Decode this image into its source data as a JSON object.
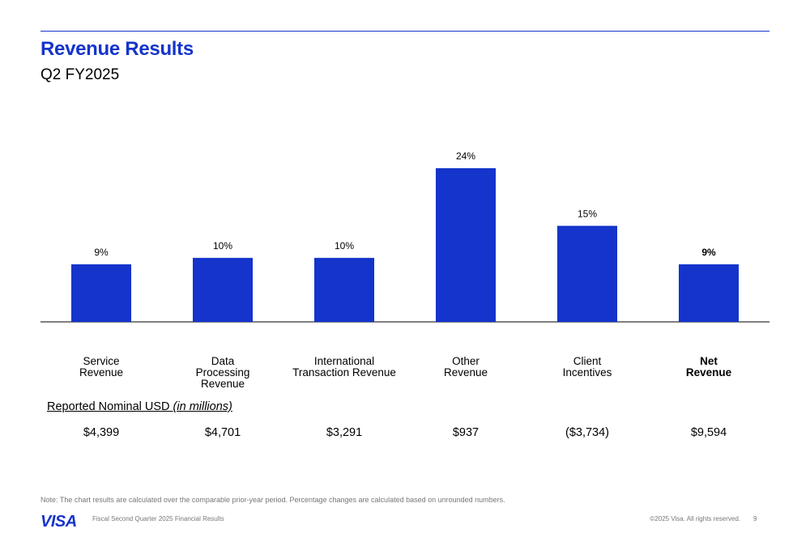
{
  "header": {
    "title": "Revenue Results",
    "subtitle": "Q2 FY2025"
  },
  "chart_data": {
    "type": "bar",
    "categories": [
      "Service\nRevenue",
      "Data\nProcessing\nRevenue",
      "International\nTransaction Revenue",
      "Other\nRevenue",
      "Client\nIncentives",
      "Net\nRevenue"
    ],
    "values": [
      9,
      10,
      10,
      24,
      15,
      9
    ],
    "value_labels": [
      "9%",
      "10%",
      "10%",
      "24%",
      "15%",
      "9%"
    ],
    "bold_last": true,
    "colors": {
      "bar": "#1434CB",
      "axis": "#000000"
    },
    "ylim": [
      0,
      24
    ],
    "grid": false
  },
  "reported": {
    "label": "Reported Nominal USD",
    "label_italic": "(in millions)",
    "amounts": [
      "$4,399",
      "$4,701",
      "$3,291",
      "$937",
      "($3,734)",
      "$9,594"
    ]
  },
  "footer": {
    "note": "Note: The chart results are calculated over the comparable prior-year period. Percentage changes are calculated based on unrounded numbers.",
    "logo_text": "VISA",
    "doc_title": "Fiscal Second Quarter 2025 Financial Results",
    "copyright": "©2025 Visa. All rights reserved.",
    "page": "9"
  }
}
